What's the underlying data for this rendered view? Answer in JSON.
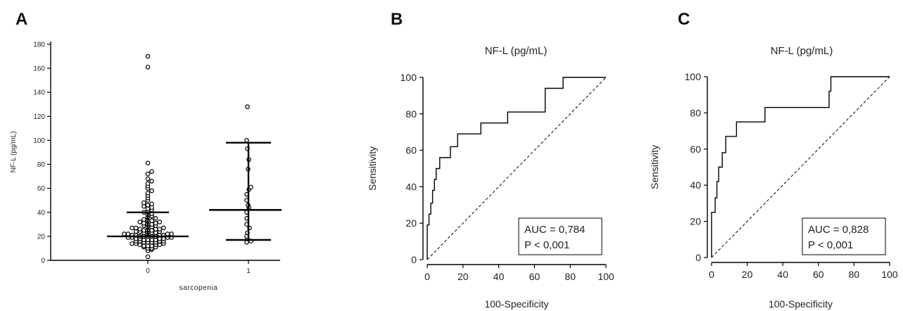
{
  "panels": {
    "a": "A",
    "b": "B",
    "c": "C"
  },
  "chart_data": [
    {
      "type": "scatter",
      "panel": "A",
      "xlabel": "sarcopenia",
      "ylabel": "NF-L (pg/mL)",
      "categories": [
        "0",
        "1"
      ],
      "ylim": [
        0,
        180
      ],
      "yticks": [
        0,
        20,
        40,
        60,
        80,
        100,
        120,
        140,
        160,
        180
      ],
      "groups": [
        {
          "category": "0",
          "median": 20,
          "q_low": 20,
          "q_high": 40,
          "values": [
            3,
            8,
            9,
            10,
            10,
            11,
            11,
            12,
            12,
            12,
            13,
            13,
            13,
            14,
            14,
            14,
            15,
            15,
            15,
            15,
            16,
            16,
            16,
            16,
            17,
            17,
            17,
            17,
            18,
            18,
            18,
            18,
            19,
            19,
            19,
            19,
            20,
            20,
            20,
            20,
            20,
            21,
            21,
            21,
            21,
            22,
            22,
            22,
            22,
            23,
            23,
            23,
            23,
            24,
            24,
            24,
            25,
            25,
            25,
            26,
            26,
            26,
            27,
            27,
            27,
            28,
            28,
            29,
            29,
            30,
            30,
            31,
            31,
            32,
            32,
            33,
            33,
            34,
            35,
            36,
            37,
            38,
            39,
            40,
            41,
            42,
            43,
            44,
            45,
            46,
            47,
            48,
            50,
            52,
            54,
            56,
            58,
            60,
            62,
            64,
            66,
            68,
            72,
            74,
            81,
            161,
            170
          ]
        },
        {
          "category": "1",
          "median": 42,
          "q_low": 17,
          "q_high": 98,
          "values": [
            15,
            16,
            18,
            20,
            23,
            27,
            30,
            35,
            40,
            44,
            46,
            50,
            55,
            59,
            61,
            76,
            84,
            93,
            100,
            128
          ]
        }
      ]
    },
    {
      "type": "line",
      "panel": "B",
      "title": "NF-L (pg/mL)",
      "xlabel": "100-Specificity",
      "ylabel": "Sensitivity",
      "xlim": [
        0,
        100
      ],
      "ylim": [
        0,
        100
      ],
      "xticks": [
        0,
        20,
        40,
        60,
        80,
        100
      ],
      "yticks": [
        0,
        20,
        40,
        60,
        80,
        100
      ],
      "auc_text": "AUC = 0,784",
      "p_text": "P < 0,001",
      "x": [
        0,
        0,
        1,
        1,
        2,
        2,
        3,
        3,
        4,
        4,
        5,
        5,
        7,
        7,
        8,
        8,
        13,
        13,
        17,
        17,
        30,
        30,
        45,
        45,
        66,
        66,
        76,
        76,
        100
      ],
      "y": [
        0,
        19,
        19,
        25,
        25,
        31,
        31,
        38,
        38,
        44,
        44,
        50,
        50,
        56,
        56,
        56,
        56,
        62,
        62,
        69,
        69,
        75,
        75,
        81,
        81,
        94,
        94,
        100,
        100
      ]
    },
    {
      "type": "line",
      "panel": "C",
      "title": "NF-L (pg/mL)",
      "xlabel": "100-Specificity",
      "ylabel": "Sensitivity",
      "xlim": [
        0,
        100
      ],
      "ylim": [
        0,
        100
      ],
      "xticks": [
        0,
        20,
        40,
        60,
        80,
        100
      ],
      "yticks": [
        0,
        20,
        40,
        60,
        80,
        100
      ],
      "auc_text": "AUC = 0,828",
      "p_text": "P < 0,001",
      "x": [
        0,
        0,
        2,
        2,
        3,
        3,
        4,
        4,
        6,
        6,
        8,
        8,
        10,
        10,
        14,
        14,
        30,
        30,
        66,
        66,
        67,
        67,
        100
      ],
      "y": [
        0,
        25,
        25,
        33,
        33,
        42,
        42,
        50,
        50,
        58,
        58,
        67,
        67,
        67,
        67,
        75,
        75,
        83,
        83,
        92,
        92,
        100,
        100
      ]
    }
  ]
}
